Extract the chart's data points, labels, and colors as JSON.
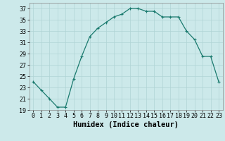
{
  "x": [
    0,
    1,
    2,
    3,
    4,
    5,
    6,
    7,
    8,
    9,
    10,
    11,
    12,
    13,
    14,
    15,
    16,
    17,
    18,
    19,
    20,
    21,
    22,
    23
  ],
  "y": [
    24,
    22.5,
    21,
    19.5,
    19.5,
    24.5,
    28.5,
    32,
    33.5,
    34.5,
    35.5,
    36,
    37,
    37,
    36.5,
    36.5,
    35.5,
    35.5,
    35.5,
    33,
    31.5,
    28.5,
    28.5,
    24
  ],
  "line_color": "#1a7a6e",
  "marker": "+",
  "marker_size": 3,
  "marker_linewidth": 0.8,
  "line_width": 0.9,
  "bg_color": "#cce9ea",
  "grid_color": "#b0d4d5",
  "xlabel": "Humidex (Indice chaleur)",
  "xlabel_fontsize": 7.5,
  "tick_fontsize": 6,
  "xlim": [
    -0.5,
    23.5
  ],
  "ylim": [
    19,
    38
  ],
  "yticks": [
    19,
    21,
    23,
    25,
    27,
    29,
    31,
    33,
    35,
    37
  ],
  "xticks": [
    0,
    1,
    2,
    3,
    4,
    5,
    6,
    7,
    8,
    9,
    10,
    11,
    12,
    13,
    14,
    15,
    16,
    17,
    18,
    19,
    20,
    21,
    22,
    23
  ]
}
